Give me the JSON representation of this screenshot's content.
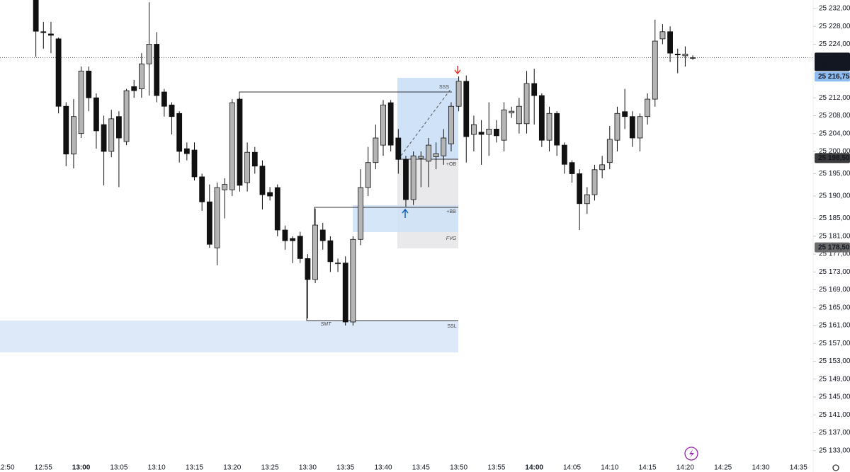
{
  "chart_data": {
    "type": "candlestick",
    "categories": [
      "12:50",
      null,
      null,
      null,
      null,
      "12:55",
      null,
      null,
      null,
      null,
      "13:00",
      null,
      null,
      null,
      null,
      "13:05",
      null,
      null,
      null,
      null,
      "13:10",
      null,
      null,
      null,
      null,
      "13:15",
      null,
      null,
      null,
      null,
      "13:20",
      null,
      null,
      null,
      null,
      "13:25",
      null,
      null,
      null,
      null,
      "13:30",
      null,
      null,
      null,
      null,
      "13:35",
      null,
      null,
      null,
      null,
      "13:40",
      null,
      null,
      null,
      null,
      "13:45",
      null,
      null,
      null,
      null,
      "13:50",
      null,
      null,
      null,
      null,
      "13:55",
      null,
      null,
      null,
      null,
      "14:00",
      null,
      null,
      null,
      null,
      "14:05",
      null,
      null,
      null,
      null,
      "14:10",
      null,
      null,
      null,
      null,
      "14:15",
      null,
      null,
      null,
      null,
      "14:20",
      null,
      null,
      null,
      null,
      "14:25",
      null,
      null,
      null,
      null,
      "14:30",
      null,
      null,
      null,
      null,
      "14:35"
    ],
    "open": [
      null,
      null,
      null,
      null,
      25235.5,
      25226.8,
      25226.3,
      25225.2,
      25210.1,
      25199.4,
      25204,
      25218,
      25212,
      25206,
      25200,
      25207.8,
      25202.2,
      25214.5,
      25214,
      25219.6,
      25224,
      25213.3,
      25210.4,
      25208.5,
      25200.6,
      25200.3,
      25194.3,
      25188.7,
      25178.4,
      25191.4,
      25191.4,
      25211.7,
      25193,
      25199.8,
      25196.7,
      25190.8,
      25191.9,
      25182.4,
      25180.5,
      25181,
      25176,
      25171.3,
      25182.4,
      25180,
      25175,
      25175,
      25161.8,
      25180.3,
      25191.9,
      25197.5,
      25201.4,
      25210.9,
      25203,
      25198.2,
      25189.2,
      25198.5,
      25197.8,
      25198.8,
      25199,
      25201.7,
      25210.1,
      25215.7,
      25203.8,
      25204.3,
      25203.8,
      25205,
      25202.5,
      25208.6,
      25206.2,
      25206.2,
      25215.2,
      25212.5,
      25202.5,
      25208.5,
      25201.4,
      25197.5,
      25195,
      25188.3,
      25190.3,
      25195.9,
      25197.5,
      25202.5,
      25208.9,
      25207.8,
      25203,
      25207.8,
      25211.7,
      25225.2,
      25226.8,
      25221.8,
      25221.4,
      25221,
      null,
      null,
      null,
      null,
      null,
      null,
      null,
      null,
      null,
      null,
      null,
      null,
      null,
      null
    ],
    "high": [
      null,
      null,
      null,
      null,
      25236,
      25229,
      25229,
      25225.5,
      25211,
      25211.7,
      25219,
      25219,
      25213,
      25208,
      25209.3,
      25209,
      25214,
      25216,
      25222,
      25233.4,
      25226.7,
      25214,
      25211,
      25209,
      25202,
      25202,
      25195,
      25192.6,
      25193,
      25194,
      25211.7,
      25212,
      25202,
      25201,
      25198,
      25192,
      25192.6,
      25183.4,
      25181,
      25182,
      25177,
      25187.2,
      25184,
      25181,
      25176,
      25176.5,
      25181,
      25196,
      25201,
      25206,
      25211.5,
      25211.5,
      25205,
      25199,
      25200,
      25200,
      25203,
      25202,
      25205,
      25211,
      25216.8,
      25217,
      25208,
      25207,
      25211,
      25207,
      25211,
      25210,
      25212,
      25218,
      25218.5,
      25213,
      25210,
      25209,
      25202,
      25198,
      25196,
      25192,
      25197,
      25199,
      25205.7,
      25210,
      25214,
      25209,
      25208.5,
      25213,
      25229.5,
      25228.5,
      25228,
      25223,
      25223.5,
      25221.5,
      null,
      null,
      null,
      null,
      null,
      null,
      null,
      null,
      null,
      null,
      null,
      null,
      null,
      null
    ],
    "low": [
      null,
      null,
      null,
      null,
      25221.2,
      25223,
      25222,
      25208.5,
      25196.7,
      25196.2,
      25203,
      25209,
      25200.6,
      25192.4,
      25198.7,
      25192,
      25201.4,
      25212,
      25212,
      25212.5,
      25211,
      25207.8,
      25203.8,
      25197.5,
      25198,
      25193.5,
      25186.7,
      25178.4,
      25174.5,
      25185,
      25190,
      25191,
      25191,
      25195,
      25187,
      25189,
      25181,
      25178,
      25175,
      25175,
      25162.6,
      25170.5,
      25178,
      25173,
      25173,
      25161,
      25161,
      25179,
      25190,
      25196,
      25199,
      25200,
      25195,
      25187.6,
      25188,
      25192,
      25192,
      25196,
      25197,
      25200,
      25209,
      25197.5,
      25200,
      25197,
      25199,
      25202,
      25200,
      25207.5,
      25204,
      25204,
      25206,
      25201,
      25200,
      25199,
      25195,
      25193,
      25182.4,
      25186,
      25189,
      25194,
      25196,
      25200,
      25205,
      25201,
      25200,
      25206,
      25210,
      25224,
      25220,
      25217.5,
      25219,
      25220.5,
      null,
      null,
      null,
      null,
      null,
      null,
      null,
      null,
      null,
      null,
      null,
      null,
      null,
      null
    ],
    "close": [
      null,
      null,
      null,
      null,
      25226.9,
      25226.6,
      25226,
      25210.1,
      25199.4,
      25207.8,
      25218,
      25212,
      25204.6,
      25200,
      25207.3,
      25203,
      25213.6,
      25213.6,
      25219.6,
      25224,
      25212.5,
      25210.1,
      25207.8,
      25200,
      25199.5,
      25194.3,
      25188.7,
      25179.2,
      25191.9,
      25192.6,
      25210.9,
      25192.4,
      25199.8,
      25196.7,
      25190.3,
      25190,
      25182.4,
      25180,
      25180,
      25176,
      25171.3,
      25183.5,
      25180,
      25175.3,
      25175,
      25161.8,
      25180.3,
      25191.9,
      25197.5,
      25203,
      25210.4,
      25201.4,
      25198.2,
      25189.2,
      25199,
      25198.9,
      25201.4,
      25199.5,
      25203,
      25210.1,
      25215.7,
      25203.3,
      25206,
      25203.8,
      25205,
      25203.5,
      25209.3,
      25209,
      25210.1,
      25215.2,
      25212.5,
      25202.5,
      25208.5,
      25201.4,
      25197.1,
      25195,
      25188.3,
      25190.3,
      25195.9,
      25197,
      25202.7,
      25208.5,
      25207.8,
      25203,
      25207.8,
      25211.7,
      25224.7,
      25226.8,
      25222,
      25221.6,
      25221.8,
      25221,
      null,
      null,
      null,
      null,
      null,
      null,
      null,
      null,
      null,
      null,
      null,
      null,
      null,
      null
    ],
    "up_color": "#b5b5b5",
    "down_color": "#111111",
    "ylim": [
      25130.9,
      25233.9
    ],
    "yticks": [
      {
        "value": 25232,
        "label": "25 232,00"
      },
      {
        "value": 25228,
        "label": "25 228,00"
      },
      {
        "value": 25224,
        "label": "25 224,00"
      },
      {
        "value": 25212,
        "label": "25 212,00"
      },
      {
        "value": 25208,
        "label": "25 208,00"
      },
      {
        "value": 25204,
        "label": "25 204,00"
      },
      {
        "value": 25200,
        "label": "25 200,00"
      },
      {
        "value": 25195,
        "label": "25 195,00"
      },
      {
        "value": 25190,
        "label": "25 190,00"
      },
      {
        "value": 25185,
        "label": "25 185,00"
      },
      {
        "value": 25181,
        "label": "25 181,00"
      },
      {
        "value": 25177,
        "label": "25 177,00"
      },
      {
        "value": 25173,
        "label": "25 173,00"
      },
      {
        "value": 25169,
        "label": "25 169,00"
      },
      {
        "value": 25165,
        "label": "25 165,00"
      },
      {
        "value": 25161,
        "label": "25 161,00"
      },
      {
        "value": 25157,
        "label": "25 157,00"
      },
      {
        "value": 25153,
        "label": "25 153,00"
      },
      {
        "value": 25149,
        "label": "25 149,00"
      },
      {
        "value": 25145,
        "label": "25 145,00"
      },
      {
        "value": 25141,
        "label": "25 141,00"
      },
      {
        "value": 25137,
        "label": "25 137,00"
      },
      {
        "value": 25133,
        "label": "25 133,00"
      }
    ],
    "price_labels": [
      {
        "value": 25221,
        "label": "25 221,00",
        "color": "#131722"
      },
      {
        "value": 25216.75,
        "label": "25 216,75",
        "color": "#90bdf0"
      },
      {
        "value": 25198.5,
        "label": "25 198,50",
        "color": "#3a3a3a"
      },
      {
        "value": 25178.5,
        "label": "25 178,50",
        "color": "#6b6b6b"
      }
    ],
    "countdown": "00:55",
    "annotations": [
      "SSS",
      "+OB",
      "+BB",
      "FVG",
      "SSL",
      "SMT"
    ],
    "grid": false
  }
}
